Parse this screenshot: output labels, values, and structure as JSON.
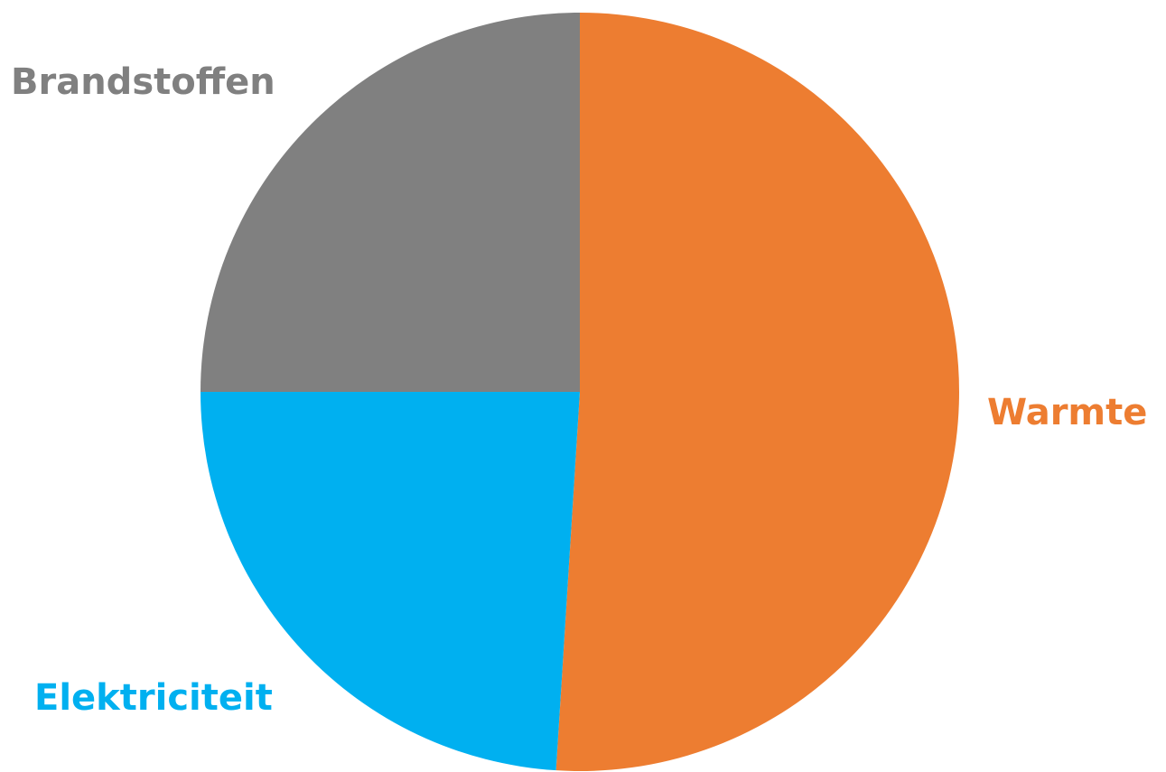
{
  "chart_data": {
    "type": "pie",
    "title": "",
    "start_angle_deg": 0,
    "direction": "clockwise",
    "slices": [
      {
        "label": "Warmte",
        "value": 51,
        "color": "#ED7D31"
      },
      {
        "label": "Elektriciteit",
        "value": 24,
        "color": "#00B0F0"
      },
      {
        "label": "Brandstoffen",
        "value": 25,
        "color": "#808080"
      }
    ]
  }
}
